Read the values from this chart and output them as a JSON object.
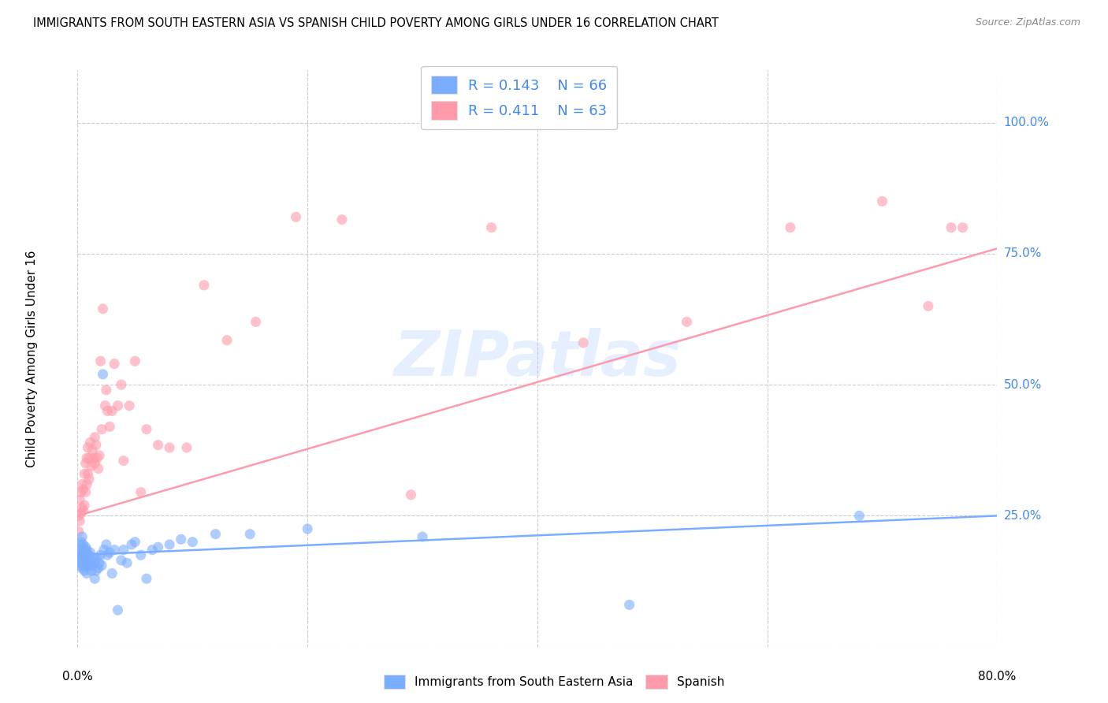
{
  "title": "IMMIGRANTS FROM SOUTH EASTERN ASIA VS SPANISH CHILD POVERTY AMONG GIRLS UNDER 16 CORRELATION CHART",
  "source": "Source: ZipAtlas.com",
  "ylabel": "Child Poverty Among Girls Under 16",
  "xlim": [
    0.0,
    0.8
  ],
  "ylim": [
    0.0,
    1.1
  ],
  "yticks": [
    0.0,
    0.25,
    0.5,
    0.75,
    1.0
  ],
  "yticklabels": [
    "",
    "25.0%",
    "50.0%",
    "75.0%",
    "100.0%"
  ],
  "xtick_left_label": "0.0%",
  "xtick_right_label": "80.0%",
  "color_blue": "#7aadff",
  "color_pink": "#ff9aaa",
  "color_text_blue": "#4488ee",
  "color_text_dark": "#3344aa",
  "watermark": "ZIPatlas",
  "grid_color": "#cccccc",
  "background": "#ffffff",
  "blue_x": [
    0.001,
    0.001,
    0.002,
    0.002,
    0.002,
    0.003,
    0.003,
    0.003,
    0.004,
    0.004,
    0.004,
    0.005,
    0.005,
    0.005,
    0.006,
    0.006,
    0.006,
    0.007,
    0.007,
    0.008,
    0.008,
    0.008,
    0.009,
    0.009,
    0.01,
    0.01,
    0.011,
    0.011,
    0.012,
    0.012,
    0.013,
    0.014,
    0.015,
    0.015,
    0.016,
    0.017,
    0.018,
    0.019,
    0.02,
    0.021,
    0.022,
    0.023,
    0.025,
    0.026,
    0.028,
    0.03,
    0.032,
    0.035,
    0.038,
    0.04,
    0.043,
    0.047,
    0.05,
    0.055,
    0.06,
    0.065,
    0.07,
    0.08,
    0.09,
    0.1,
    0.12,
    0.15,
    0.2,
    0.3,
    0.48,
    0.68
  ],
  "blue_y": [
    0.185,
    0.165,
    0.195,
    0.175,
    0.155,
    0.2,
    0.18,
    0.16,
    0.21,
    0.17,
    0.15,
    0.195,
    0.175,
    0.155,
    0.185,
    0.165,
    0.145,
    0.19,
    0.17,
    0.185,
    0.16,
    0.14,
    0.175,
    0.155,
    0.175,
    0.155,
    0.18,
    0.16,
    0.165,
    0.145,
    0.155,
    0.17,
    0.13,
    0.16,
    0.145,
    0.17,
    0.15,
    0.16,
    0.175,
    0.155,
    0.52,
    0.185,
    0.195,
    0.175,
    0.18,
    0.14,
    0.185,
    0.07,
    0.165,
    0.185,
    0.16,
    0.195,
    0.2,
    0.175,
    0.13,
    0.185,
    0.19,
    0.195,
    0.205,
    0.2,
    0.215,
    0.215,
    0.225,
    0.21,
    0.08,
    0.25
  ],
  "pink_x": [
    0.001,
    0.001,
    0.002,
    0.002,
    0.003,
    0.003,
    0.004,
    0.004,
    0.005,
    0.005,
    0.006,
    0.006,
    0.007,
    0.007,
    0.008,
    0.008,
    0.009,
    0.009,
    0.01,
    0.01,
    0.011,
    0.012,
    0.013,
    0.014,
    0.015,
    0.015,
    0.016,
    0.017,
    0.018,
    0.019,
    0.02,
    0.021,
    0.022,
    0.024,
    0.025,
    0.026,
    0.028,
    0.03,
    0.032,
    0.035,
    0.038,
    0.04,
    0.045,
    0.05,
    0.055,
    0.06,
    0.07,
    0.08,
    0.095,
    0.11,
    0.13,
    0.155,
    0.19,
    0.23,
    0.29,
    0.36,
    0.44,
    0.53,
    0.62,
    0.7,
    0.74,
    0.76,
    0.77
  ],
  "pink_y": [
    0.25,
    0.22,
    0.28,
    0.24,
    0.295,
    0.255,
    0.31,
    0.265,
    0.3,
    0.26,
    0.33,
    0.27,
    0.35,
    0.295,
    0.36,
    0.31,
    0.38,
    0.33,
    0.36,
    0.32,
    0.39,
    0.345,
    0.375,
    0.36,
    0.4,
    0.35,
    0.385,
    0.36,
    0.34,
    0.365,
    0.545,
    0.415,
    0.645,
    0.46,
    0.49,
    0.45,
    0.42,
    0.45,
    0.54,
    0.46,
    0.5,
    0.355,
    0.46,
    0.545,
    0.295,
    0.415,
    0.385,
    0.38,
    0.38,
    0.69,
    0.585,
    0.62,
    0.82,
    0.815,
    0.29,
    0.8,
    0.58,
    0.62,
    0.8,
    0.85,
    0.65,
    0.8,
    0.8
  ],
  "blue_trend_x": [
    0.0,
    0.8
  ],
  "blue_trend_y": [
    0.175,
    0.25
  ],
  "pink_trend_x": [
    0.0,
    0.8
  ],
  "pink_trend_y": [
    0.25,
    0.76
  ]
}
